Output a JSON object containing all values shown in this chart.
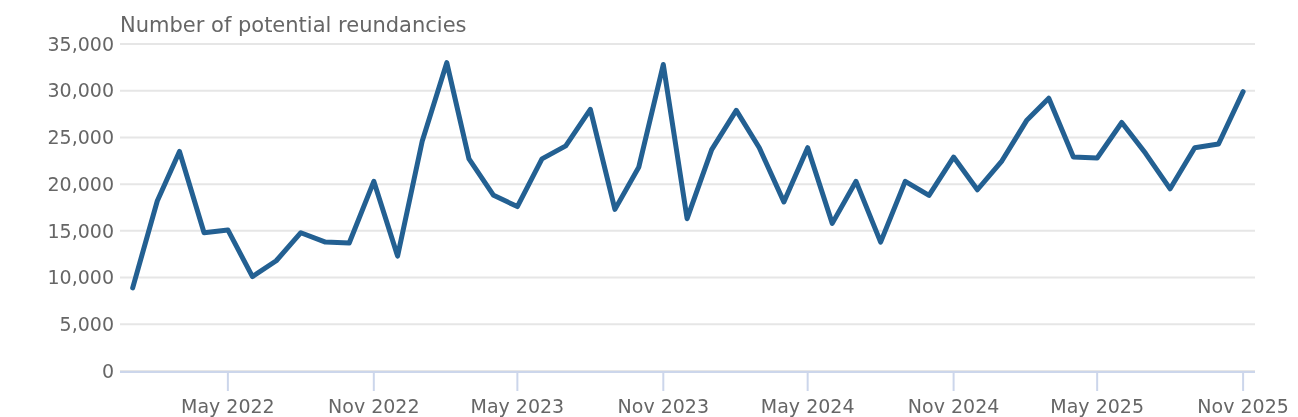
{
  "chart_data": {
    "type": "line",
    "title": "Number of potential reundancies",
    "x": [
      "2022-01",
      "2022-02",
      "2022-03",
      "2022-04",
      "2022-05",
      "2022-06",
      "2022-07",
      "2022-08",
      "2022-09",
      "2022-10",
      "2022-11",
      "2022-12",
      "2023-01",
      "2023-02",
      "2023-03",
      "2023-04",
      "2023-05",
      "2023-06",
      "2023-07",
      "2023-08",
      "2023-09",
      "2023-10",
      "2023-11",
      "2023-12",
      "2024-01",
      "2024-02",
      "2024-03",
      "2024-04",
      "2024-05",
      "2024-06",
      "2024-07",
      "2024-08",
      "2024-09",
      "2024-10",
      "2024-11",
      "2024-12",
      "2025-01",
      "2025-02",
      "2025-03",
      "2025-04",
      "2025-05",
      "2025-06",
      "2025-07",
      "2025-08",
      "2025-09",
      "2025-10",
      "2025-11"
    ],
    "series": [
      {
        "color": "#236092",
        "values": [
          8900,
          18200,
          23500,
          14800,
          15100,
          10100,
          11800,
          14800,
          13800,
          13700,
          20300,
          12300,
          24600,
          33000,
          22700,
          18800,
          17600,
          22700,
          24100,
          28000,
          17300,
          21800,
          32800,
          16300,
          23700,
          27900,
          23900,
          18100,
          23900,
          15800,
          20300,
          13800,
          20300,
          18800,
          22900,
          19400,
          22500,
          26800,
          29200,
          22900,
          22800,
          26600,
          23300,
          19500,
          23900,
          24300,
          29900
        ]
      }
    ],
    "xlim": [
      "2021-12-16",
      "2025-11-16"
    ],
    "xticks": [
      {
        "value": "2022-05",
        "label": "May 2022"
      },
      {
        "value": "2022-11",
        "label": "Nov 2022"
      },
      {
        "value": "2023-05",
        "label": "May 2023"
      },
      {
        "value": "2023-11",
        "label": "Nov 2023"
      },
      {
        "value": "2024-05",
        "label": "May 2024"
      },
      {
        "value": "2024-11",
        "label": "Nov 2024"
      },
      {
        "value": "2025-05",
        "label": "May 2025"
      },
      {
        "value": "2025-11",
        "label": "Nov 2025"
      }
    ],
    "ylim": [
      0,
      35000
    ],
    "yticks": [
      {
        "value": 0,
        "label": "0"
      },
      {
        "value": 5000,
        "label": "5,000"
      },
      {
        "value": 10000,
        "label": "10,000"
      },
      {
        "value": 15000,
        "label": "15,000"
      },
      {
        "value": 20000,
        "label": "20,000"
      },
      {
        "value": 25000,
        "label": "25,000"
      },
      {
        "value": 30000,
        "label": "30,000"
      },
      {
        "value": 35000,
        "label": "35,000"
      }
    ],
    "grid": "y",
    "marker": "none",
    "line_style": "solid"
  }
}
